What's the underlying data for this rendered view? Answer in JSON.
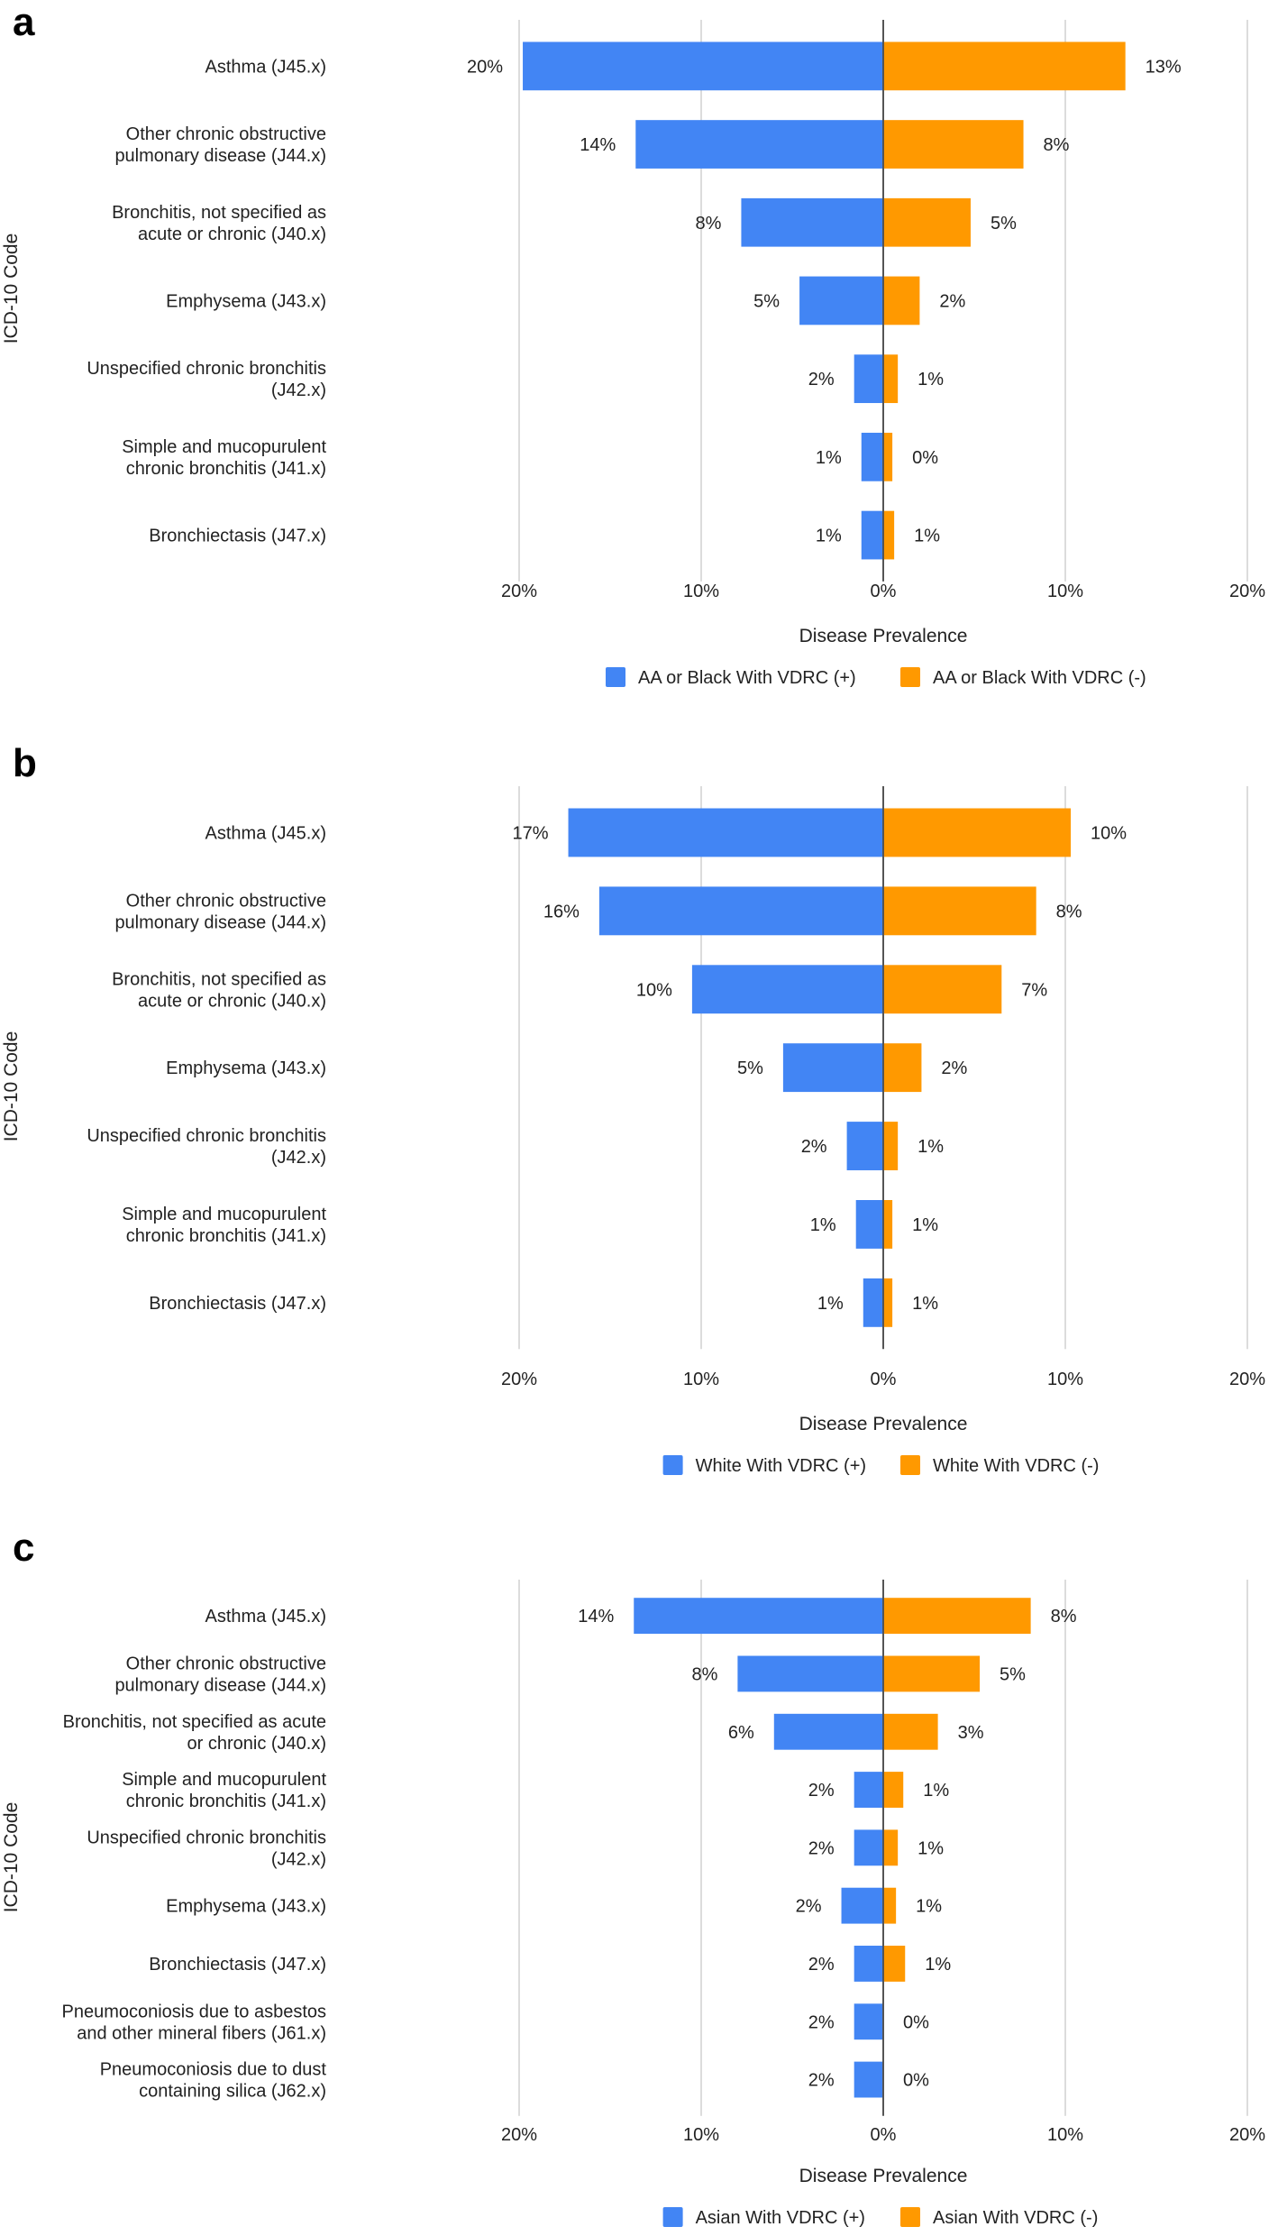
{
  "chart_data": [
    {
      "panel_label": "a",
      "type": "bar",
      "orientation": "horizontal-diverging",
      "categories": [
        [
          "Asthma (J45.x)"
        ],
        [
          "Other chronic obstructive",
          "pulmonary disease (J44.x)"
        ],
        [
          "Bronchitis, not specified as",
          "acute or chronic (J40.x)"
        ],
        [
          "Emphysema (J43.x)"
        ],
        [
          "Unspecified chronic bronchitis",
          "(J42.x)"
        ],
        [
          "Simple and mucopurulent",
          "chronic bronchitis (J41.x)"
        ],
        [
          "Bronchiectasis (J47.x)"
        ]
      ],
      "series": [
        {
          "name": "AA or Black With VDRC (+)",
          "color": "#4285f4",
          "side": "left",
          "values": [
            19.8,
            13.6,
            7.8,
            4.6,
            1.6,
            1.2,
            1.2
          ],
          "labels": [
            "20%",
            "14%",
            "8%",
            "5%",
            "2%",
            "1%",
            "1%"
          ]
        },
        {
          "name": "AA or Black With VDRC (-)",
          "color": "#ff9900",
          "side": "right",
          "values": [
            13.3,
            7.7,
            4.8,
            2.0,
            0.8,
            0.5,
            0.6
          ],
          "labels": [
            "13%",
            "8%",
            "5%",
            "2%",
            "1%",
            "0%",
            "1%"
          ]
        }
      ],
      "xlabel": "Disease Prevalence",
      "ylabel": "ICD-10 Code",
      "xlim": [
        -20,
        20
      ],
      "xticks": [
        "20%",
        "10%",
        "0%",
        "10%",
        "20%"
      ],
      "grid": true,
      "legend_position": "bottom"
    },
    {
      "panel_label": "b",
      "type": "bar",
      "orientation": "horizontal-diverging",
      "categories": [
        [
          "Asthma (J45.x)"
        ],
        [
          "Other chronic obstructive",
          "pulmonary disease (J44.x)"
        ],
        [
          "Bronchitis, not specified as",
          "acute or chronic (J40.x)"
        ],
        [
          "Emphysema (J43.x)"
        ],
        [
          "Unspecified chronic bronchitis",
          "(J42.x)"
        ],
        [
          "Simple and mucopurulent",
          "chronic bronchitis (J41.x)"
        ],
        [
          "Bronchiectasis (J47.x)"
        ]
      ],
      "series": [
        {
          "name": "White With VDRC (+)",
          "color": "#4285f4",
          "side": "left",
          "values": [
            17.3,
            15.6,
            10.5,
            5.5,
            2.0,
            1.5,
            1.1
          ],
          "labels": [
            "17%",
            "16%",
            "10%",
            "5%",
            "2%",
            "1%",
            "1%"
          ]
        },
        {
          "name": "White With VDRC (-)",
          "color": "#ff9900",
          "side": "right",
          "values": [
            10.3,
            8.4,
            6.5,
            2.1,
            0.8,
            0.5,
            0.5
          ],
          "labels": [
            "10%",
            "8%",
            "7%",
            "2%",
            "1%",
            "1%",
            "1%"
          ]
        }
      ],
      "xlabel": "Disease Prevalence",
      "ylabel": "ICD-10 Code",
      "xlim": [
        -20,
        20
      ],
      "xticks": [
        "20%",
        "10%",
        "0%",
        "10%",
        "20%"
      ],
      "grid": true,
      "legend_position": "bottom"
    },
    {
      "panel_label": "c",
      "type": "bar",
      "orientation": "horizontal-diverging",
      "categories": [
        [
          "Asthma (J45.x)"
        ],
        [
          "Other chronic obstructive",
          "pulmonary disease (J44.x)"
        ],
        [
          "Bronchitis, not specified as acute",
          "or chronic (J40.x)"
        ],
        [
          "Simple and mucopurulent",
          "chronic bronchitis (J41.x)"
        ],
        [
          "Unspecified chronic bronchitis",
          "(J42.x)"
        ],
        [
          "Emphysema (J43.x)"
        ],
        [
          "Bronchiectasis (J47.x)"
        ],
        [
          "Pneumoconiosis due to asbestos",
          "and other mineral fibers (J61.x)"
        ],
        [
          "Pneumoconiosis due to dust",
          "containing silica (J62.x)"
        ]
      ],
      "series": [
        {
          "name": "Asian With VDRC (+)",
          "color": "#4285f4",
          "side": "left",
          "values": [
            13.7,
            8.0,
            6.0,
            1.6,
            1.6,
            2.3,
            1.6,
            1.6,
            1.6
          ],
          "labels": [
            "14%",
            "8%",
            "6%",
            "2%",
            "2%",
            "2%",
            "2%",
            "2%",
            "2%"
          ]
        },
        {
          "name": "Asian With VDRC (-)",
          "color": "#ff9900",
          "side": "right",
          "values": [
            8.1,
            5.3,
            3.0,
            1.1,
            0.8,
            0.7,
            1.2,
            0,
            0
          ],
          "labels": [
            "8%",
            "5%",
            "3%",
            "1%",
            "1%",
            "1%",
            "1%",
            "0%",
            "0%"
          ]
        }
      ],
      "xlabel": "Disease Prevalence",
      "ylabel": "ICD-10 Code",
      "xlim": [
        -20,
        20
      ],
      "xticks": [
        "20%",
        "10%",
        "0%",
        "10%",
        "20%"
      ],
      "grid": true,
      "legend_position": "bottom"
    }
  ]
}
